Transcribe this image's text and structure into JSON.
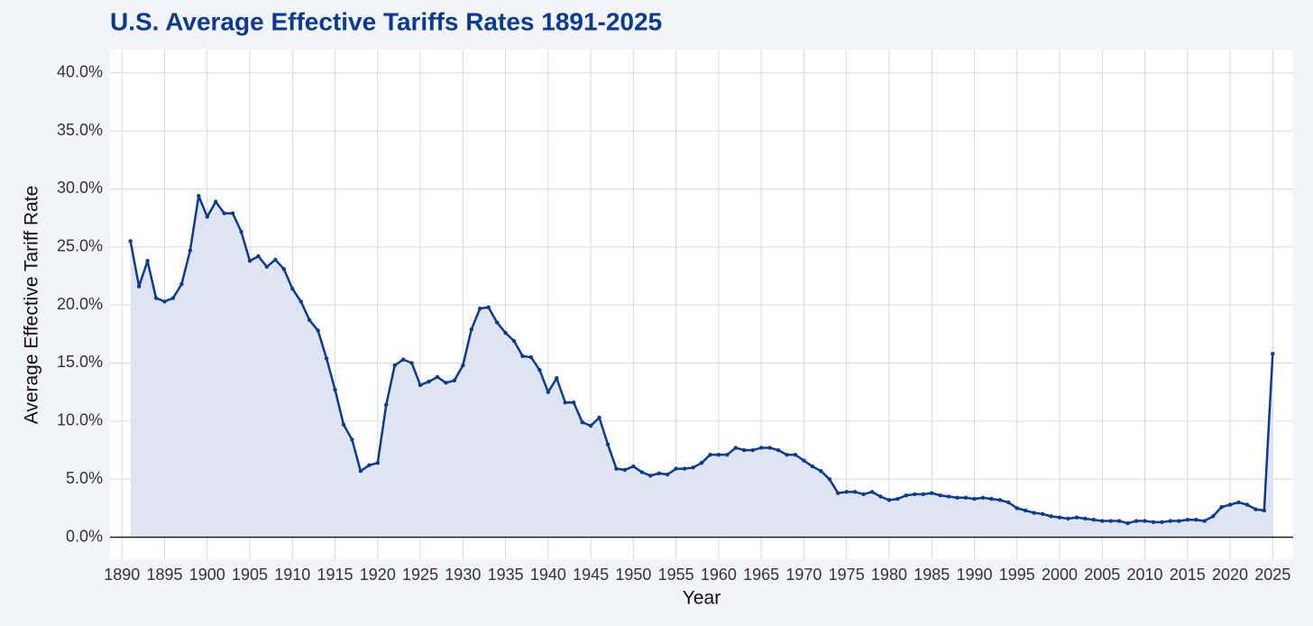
{
  "chart_data": {
    "type": "line",
    "title": "U.S. Average Effective Tariffs Rates 1891-2025",
    "x_label": "Year",
    "y_label": "Average Effective Tariff Rate",
    "x": [
      1891,
      1892,
      1893,
      1894,
      1895,
      1896,
      1897,
      1898,
      1899,
      1900,
      1901,
      1902,
      1903,
      1904,
      1905,
      1906,
      1907,
      1908,
      1909,
      1910,
      1911,
      1912,
      1913,
      1914,
      1915,
      1916,
      1917,
      1918,
      1919,
      1920,
      1921,
      1922,
      1923,
      1924,
      1925,
      1926,
      1927,
      1928,
      1929,
      1930,
      1931,
      1932,
      1933,
      1934,
      1935,
      1936,
      1937,
      1938,
      1939,
      1940,
      1941,
      1942,
      1943,
      1944,
      1945,
      1946,
      1947,
      1948,
      1949,
      1950,
      1951,
      1952,
      1953,
      1954,
      1955,
      1956,
      1957,
      1958,
      1959,
      1960,
      1961,
      1962,
      1963,
      1964,
      1965,
      1966,
      1967,
      1968,
      1969,
      1970,
      1971,
      1972,
      1973,
      1974,
      1975,
      1976,
      1977,
      1978,
      1979,
      1980,
      1981,
      1982,
      1983,
      1984,
      1985,
      1986,
      1987,
      1988,
      1989,
      1990,
      1991,
      1992,
      1993,
      1994,
      1995,
      1996,
      1997,
      1998,
      1999,
      2000,
      2001,
      2002,
      2003,
      2004,
      2005,
      2006,
      2007,
      2008,
      2009,
      2010,
      2011,
      2012,
      2013,
      2014,
      2015,
      2016,
      2017,
      2018,
      2019,
      2020,
      2021,
      2022,
      2023,
      2024,
      2025
    ],
    "values": [
      25.5,
      21.6,
      23.8,
      20.6,
      20.3,
      20.6,
      21.8,
      24.7,
      29.4,
      27.6,
      28.9,
      27.9,
      27.9,
      26.3,
      23.8,
      24.2,
      23.3,
      23.9,
      23.1,
      21.4,
      20.3,
      18.7,
      17.8,
      15.4,
      12.7,
      9.7,
      8.4,
      5.7,
      6.2,
      6.4,
      11.4,
      14.8,
      15.3,
      15.0,
      13.1,
      13.4,
      13.8,
      13.3,
      13.5,
      14.8,
      17.9,
      19.7,
      19.8,
      18.5,
      17.6,
      16.9,
      15.6,
      15.5,
      14.4,
      12.5,
      13.7,
      11.6,
      11.6,
      9.9,
      9.6,
      10.3,
      8.0,
      5.9,
      5.8,
      6.1,
      5.6,
      5.3,
      5.5,
      5.4,
      5.9,
      5.9,
      6.0,
      6.4,
      7.1,
      7.1,
      7.1,
      7.7,
      7.5,
      7.5,
      7.7,
      7.7,
      7.5,
      7.1,
      7.1,
      6.6,
      6.1,
      5.7,
      5.0,
      3.8,
      3.9,
      3.9,
      3.7,
      3.9,
      3.5,
      3.2,
      3.3,
      3.6,
      3.7,
      3.7,
      3.8,
      3.6,
      3.5,
      3.4,
      3.4,
      3.3,
      3.4,
      3.3,
      3.2,
      3.0,
      2.5,
      2.3,
      2.1,
      2.0,
      1.8,
      1.7,
      1.6,
      1.7,
      1.6,
      1.5,
      1.4,
      1.4,
      1.4,
      1.2,
      1.4,
      1.4,
      1.3,
      1.3,
      1.4,
      1.4,
      1.5,
      1.5,
      1.4,
      1.8,
      2.6,
      2.8,
      3.0,
      2.8,
      2.4,
      2.3,
      15.8
    ],
    "color": "#0a3b94",
    "area_color": "#dfe5f0",
    "xlim": [
      1888.6,
      2027.4
    ],
    "ylim": [
      -1.9,
      42
    ],
    "xticks": [
      1890,
      1895,
      1900,
      1905,
      1910,
      1915,
      1920,
      1925,
      1930,
      1935,
      1940,
      1945,
      1950,
      1955,
      1960,
      1965,
      1970,
      1975,
      1980,
      1985,
      1990,
      1995,
      2000,
      2005,
      2010,
      2015,
      2020,
      2025
    ],
    "yticks": [
      {
        "value": 0,
        "label": "0.0%"
      },
      {
        "value": 5,
        "label": "5.0%"
      },
      {
        "value": 10,
        "label": "10.0%"
      },
      {
        "value": 15,
        "label": "15.0%"
      },
      {
        "value": 20,
        "label": "20.0%"
      },
      {
        "value": 25,
        "label": "25.0%"
      },
      {
        "value": 30,
        "label": "30.0%"
      },
      {
        "value": 35,
        "label": "35.0%"
      },
      {
        "value": 40,
        "label": "40.0%"
      }
    ],
    "grid": true
  }
}
